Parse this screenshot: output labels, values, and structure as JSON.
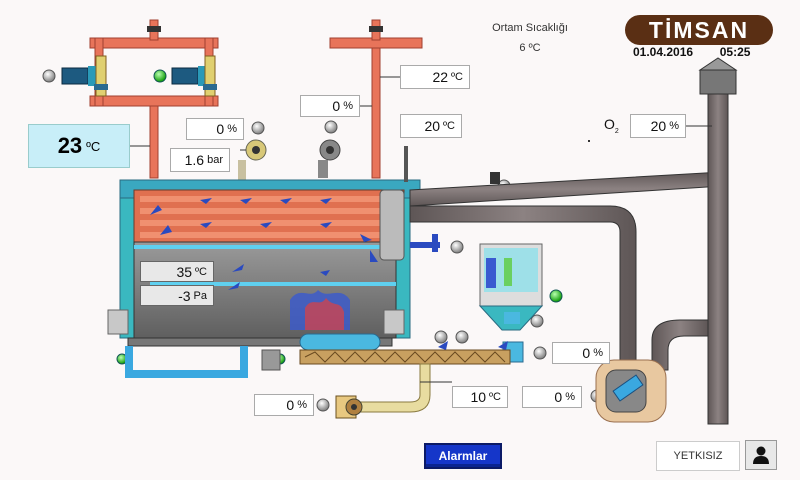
{
  "header": {
    "ambient_label": "Ortam Sıcaklığı",
    "ambient_value": "6 ºC",
    "brand": "TİMSAN",
    "date": "01.04.2016",
    "time": "05:25"
  },
  "readouts": {
    "boiler_temp": {
      "value": "23",
      "unit": "ºC"
    },
    "pressure": {
      "value": "1.6",
      "unit": "bar"
    },
    "pump_left_pct": {
      "value": "0",
      "unit": "%"
    },
    "pump_mid_pct": {
      "value": "0",
      "unit": "%"
    },
    "stack_temp_top": {
      "value": "22",
      "unit": "ºC"
    },
    "flue_temp": {
      "value": "20",
      "unit": "ºC"
    },
    "o2_label": "O",
    "o2_sub": "2",
    "o2_pct": {
      "value": "20",
      "unit": "%"
    },
    "furnace_temp": {
      "value": "35",
      "unit": "ºC"
    },
    "furnace_pressure": {
      "value": "-3",
      "unit": "Pa"
    },
    "feeder_pct": {
      "value": "0",
      "unit": "%"
    },
    "fuel_temp": {
      "value": "10",
      "unit": "ºC"
    },
    "fan_pct": {
      "value": "0",
      "unit": "%"
    },
    "bottom_fan_pct": {
      "value": "0",
      "unit": "%"
    }
  },
  "buttons": {
    "alarms": "Alarmlar",
    "user": "YETKISIZ"
  },
  "colors": {
    "pipe_orange": "#e8745a",
    "duct_gray": "#7a7070",
    "water_blue": "#3aa8e0",
    "boiler_body": "#8a8a8a",
    "teal": "#3ab8c0",
    "status_green": "#22c020",
    "brand_brown": "#5a2f14",
    "alarm_blue": "#1536c9"
  },
  "icons": [
    "pump-icon",
    "motor-icon",
    "fan-icon",
    "status-light-icon",
    "user-icon",
    "valve-icon"
  ]
}
